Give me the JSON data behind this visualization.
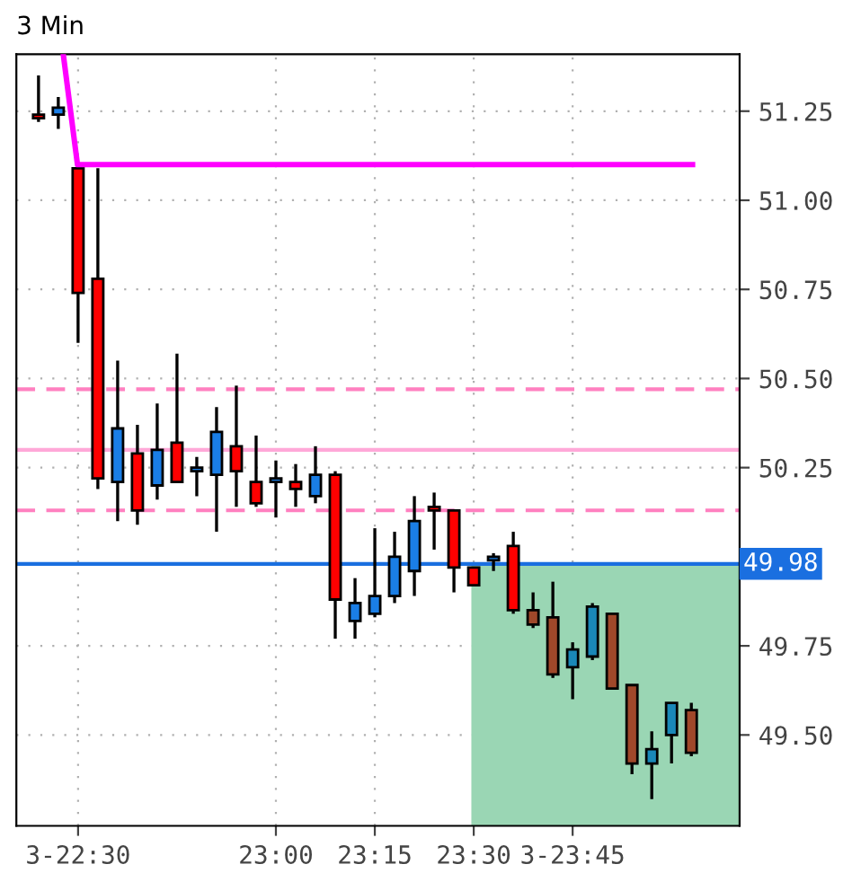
{
  "chart_data": {
    "type": "candlestick",
    "title": "3 Min",
    "x": [
      22.4,
      22.45,
      22.5,
      22.55,
      22.6,
      22.65,
      22.7,
      22.75,
      22.8,
      22.85,
      22.9,
      22.95,
      23.0,
      23.05,
      23.1,
      23.15,
      23.2,
      23.25,
      23.3,
      23.35,
      23.4,
      23.45,
      23.5,
      23.55,
      23.6,
      23.65,
      23.7,
      23.75,
      23.8,
      23.85,
      23.9,
      23.95,
      24.0,
      24.05
    ],
    "ohlc": [
      [
        51.24,
        51.35,
        51.22,
        51.23
      ],
      [
        51.24,
        51.29,
        51.2,
        51.26
      ],
      [
        51.09,
        51.09,
        50.6,
        50.74
      ],
      [
        50.78,
        51.09,
        50.19,
        50.22
      ],
      [
        50.21,
        50.55,
        50.1,
        50.36
      ],
      [
        50.29,
        50.37,
        50.09,
        50.13
      ],
      [
        50.2,
        50.43,
        50.16,
        50.3
      ],
      [
        50.32,
        50.57,
        50.21,
        50.21
      ],
      [
        50.24,
        50.28,
        50.17,
        50.25
      ],
      [
        50.23,
        50.42,
        50.07,
        50.35
      ],
      [
        50.31,
        50.48,
        50.14,
        50.24
      ],
      [
        50.21,
        50.34,
        50.14,
        50.15
      ],
      [
        50.21,
        50.27,
        50.11,
        50.22
      ],
      [
        50.21,
        50.26,
        50.14,
        50.19
      ],
      [
        50.17,
        50.31,
        50.15,
        50.23
      ],
      [
        50.23,
        50.24,
        49.77,
        49.88
      ],
      [
        49.82,
        49.94,
        49.77,
        49.87
      ],
      [
        49.84,
        50.08,
        49.83,
        49.89
      ],
      [
        49.89,
        50.07,
        49.87,
        50.0
      ],
      [
        49.96,
        50.17,
        49.89,
        50.1
      ],
      [
        50.14,
        50.18,
        50.02,
        50.13
      ],
      [
        50.13,
        50.13,
        49.9,
        49.97
      ],
      [
        49.97,
        49.97,
        49.92,
        49.92
      ],
      [
        49.99,
        50.01,
        49.96,
        50.0
      ],
      [
        50.03,
        50.07,
        49.84,
        49.85
      ],
      [
        49.85,
        49.9,
        49.8,
        49.81
      ],
      [
        49.83,
        49.93,
        49.66,
        49.67
      ],
      [
        49.69,
        49.76,
        49.6,
        49.74
      ],
      [
        49.72,
        49.87,
        49.71,
        49.86
      ],
      [
        49.84,
        49.84,
        49.63,
        49.63
      ],
      [
        49.64,
        49.64,
        49.39,
        49.42
      ],
      [
        49.42,
        49.51,
        49.32,
        49.46
      ],
      [
        49.5,
        49.59,
        49.42,
        49.59
      ],
      [
        49.57,
        49.59,
        49.44,
        49.45
      ]
    ],
    "colors": [
      "#ff0000",
      "#1a7ee6",
      "#ff0000",
      "#ff0000",
      "#1a7ee6",
      "#ff0000",
      "#1a7ee6",
      "#ff0000",
      "#1a7ee6",
      "#1a7ee6",
      "#ff0000",
      "#ff0000",
      "#1a7ee6",
      "#ff0000",
      "#1a7ee6",
      "#ff0000",
      "#1a7ee6",
      "#1a7ee6",
      "#1a7ee6",
      "#1a7ee6",
      "#ff0000",
      "#ff0000",
      "#ff0000",
      "#1a7ee6",
      "#ff0000",
      "#a0482a",
      "#a0482a",
      "#1a88b8",
      "#1a88b8",
      "#a0482a",
      "#a0482a",
      "#1a88b8",
      "#1a88b8",
      "#a0482a"
    ],
    "series": [
      {
        "type": "line",
        "color": "#ff00ff",
        "x": [
          22.4625,
          22.4985,
          24.053
        ],
        "values": [
          51.41,
          51.1,
          51.1
        ]
      }
    ],
    "ref_lines": [
      {
        "axis": "y",
        "value": 50.47,
        "color": "#ff80c0",
        "line_style": "dashed"
      },
      {
        "axis": "y",
        "value": 50.3,
        "color": "#ffa8d8",
        "line_style": "solid"
      },
      {
        "axis": "y",
        "value": 50.13,
        "color": "#ff80c0",
        "line_style": "dashed"
      },
      {
        "axis": "y",
        "value": 49.98,
        "color": "#1a6fe0",
        "line_style": "solid",
        "label": "49.98"
      }
    ],
    "bands": [
      {
        "axis": "x",
        "from": 23.494,
        "to": 24.172,
        "color": "#9ad6b4"
      }
    ],
    "xlim": [
      22.344,
      24.172
    ],
    "ylim": [
      49.245,
      51.41
    ],
    "xticks": [
      {
        "value": 22.5,
        "label": "3-22:30"
      },
      {
        "value": 23.0,
        "label": "23:00"
      },
      {
        "value": 23.25,
        "label": "23:15"
      },
      {
        "value": 23.5,
        "label": "23:30"
      },
      {
        "value": 23.75,
        "label": "3-23:45"
      }
    ],
    "yticks": [
      {
        "value": 51.25,
        "label": "51.25"
      },
      {
        "value": 51.0,
        "label": "51.00"
      },
      {
        "value": 50.75,
        "label": "50.75"
      },
      {
        "value": 50.5,
        "label": "50.50"
      },
      {
        "value": 50.25,
        "label": "50.25"
      },
      {
        "value": 49.75,
        "label": "49.75"
      },
      {
        "value": 49.5,
        "label": "49.50"
      }
    ],
    "grid": true
  }
}
